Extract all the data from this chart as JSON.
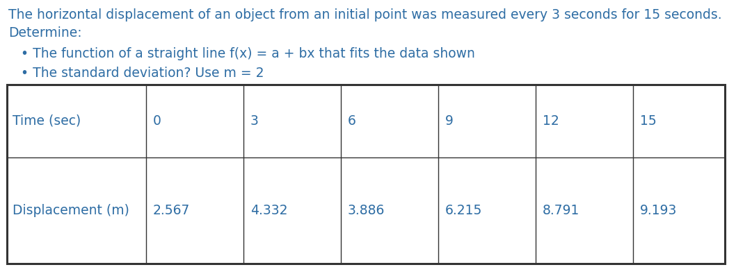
{
  "title_line1": "The horizontal displacement of an object from an initial point was measured every 3 seconds for 15 seconds.",
  "title_line2": "Determine:",
  "bullet1": "• The function of a straight line f(x) = a + bx that fits the data shown",
  "bullet2": "• The standard deviation? Use m = 2",
  "table_headers": [
    "Time (sec)",
    "0",
    "3",
    "6",
    "9",
    "12",
    "15"
  ],
  "table_row2_label": "Displacement (m)",
  "table_row2_values": [
    "2.567",
    "4.332",
    "3.886",
    "6.215",
    "8.791",
    "9.193"
  ],
  "text_color": "#2e6da4",
  "table_border_color": "#333333",
  "background_color": "#ffffff",
  "font_size": 13.5
}
